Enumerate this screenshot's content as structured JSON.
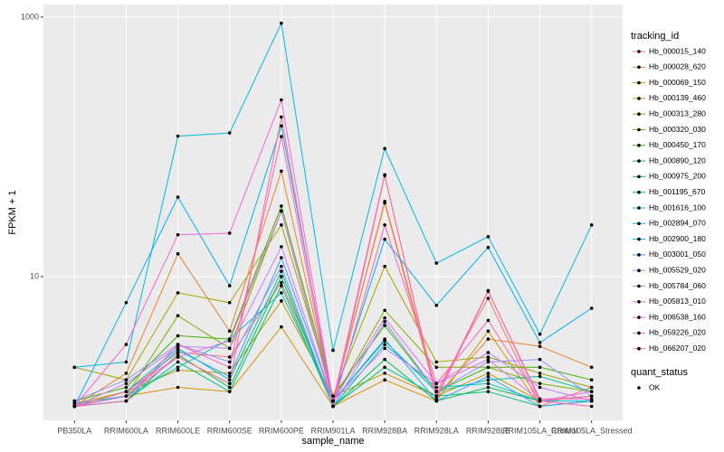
{
  "chart_data": {
    "type": "line",
    "x_label": "sample_name",
    "y_label": "FPKM + 1",
    "log_scale": true,
    "grid": true,
    "ylim": [
      0.78,
      1250
    ],
    "yticks": [
      10,
      1000
    ],
    "legend_title": "tracking_id",
    "point_legend_title": "quant_status",
    "point_legend_entries": [
      "OK"
    ],
    "point_color": "#000000",
    "categories": [
      "PB350LA",
      "RRIM600LA",
      "RRIM600LE",
      "RRIM600SE",
      "RRIM600PE",
      "RRIM901LA",
      "RRIM928BA",
      "RRIM928LA",
      "RRIM928LE",
      "RRIM105LA_Control",
      "RRIM105LA_Stressed"
    ],
    "series": [
      {
        "name": "Hb_000015_140",
        "color": "#F8766D",
        "values": [
          1.0,
          1.3,
          2.6,
          2.4,
          9,
          1.1,
          38,
          1.3,
          6.8,
          1.0,
          1.4
        ]
      },
      {
        "name": "Hb_000028_620",
        "color": "#EA8331",
        "values": [
          1.0,
          1.8,
          15,
          3.8,
          65,
          1.1,
          37,
          1.2,
          3.3,
          2.9,
          2.0
        ]
      },
      {
        "name": "Hb_000069_150",
        "color": "#D89000",
        "values": [
          1.0,
          1.2,
          1.4,
          1.3,
          4.1,
          1.0,
          1.6,
          1.1,
          3.8,
          1.0,
          1.1
        ]
      },
      {
        "name": "Hb_000139_460",
        "color": "#C09B00",
        "values": [
          1.05,
          1.3,
          1.9,
          1.8,
          6.5,
          1.2,
          1.8,
          1.2,
          1.8,
          1.1,
          1.2
        ]
      },
      {
        "name": "Hb_000313_280",
        "color": "#A3A500",
        "values": [
          2.0,
          1.6,
          7.5,
          6.3,
          25,
          1.2,
          12,
          2.2,
          2.4,
          1.8,
          1.4
        ]
      },
      {
        "name": "Hb_000320_030",
        "color": "#7CAE00",
        "values": [
          1.0,
          1.2,
          5.0,
          2.8,
          32,
          1.1,
          5.5,
          2.0,
          2.0,
          1.5,
          1.3
        ]
      },
      {
        "name": "Hb_000450_170",
        "color": "#39B600",
        "values": [
          1.1,
          1.4,
          3.5,
          3.3,
          35,
          1.2,
          4.2,
          1.3,
          2.0,
          2.0,
          1.6
        ]
      },
      {
        "name": "Hb_000890_120",
        "color": "#00BB4E",
        "values": [
          1.0,
          1.1,
          2.5,
          1.4,
          10,
          1.0,
          2.3,
          1.1,
          1.4,
          1.1,
          1.2
        ]
      },
      {
        "name": "Hb_000975_200",
        "color": "#00BF7D",
        "values": [
          1.0,
          1.1,
          2.2,
          1.3,
          8.5,
          1.0,
          2.0,
          1.2,
          1.3,
          1.0,
          1.1
        ]
      },
      {
        "name": "Hb_001195_670",
        "color": "#00C1A3",
        "values": [
          1.05,
          1.2,
          2.0,
          3.3,
          7.5,
          1.1,
          3.2,
          1.3,
          1.6,
          1.7,
          1.3
        ]
      },
      {
        "name": "Hb_001616_100",
        "color": "#00BFC4",
        "values": [
          1.0,
          1.3,
          2.8,
          1.6,
          11,
          1.0,
          3.0,
          1.4,
          1.5,
          1.1,
          1.1
        ]
      },
      {
        "name": "Hb_002894_070",
        "color": "#00BAE0",
        "values": [
          2.0,
          2.2,
          121,
          128,
          897,
          2.7,
          97,
          12.7,
          20.3,
          3.6,
          25
        ]
      },
      {
        "name": "Hb_002900_180",
        "color": "#00B0F6",
        "values": [
          1.0,
          6.3,
          41,
          8.5,
          145,
          1.1,
          19.4,
          6.0,
          16.8,
          3.1,
          5.7
        ]
      },
      {
        "name": "Hb_003001_050",
        "color": "#35A2FF",
        "values": [
          1.0,
          1.2,
          2.7,
          1.7,
          14,
          1.1,
          3.3,
          1.1,
          1.7,
          1.0,
          1.1
        ]
      },
      {
        "name": "Hb_005529_020",
        "color": "#9590FF",
        "values": [
          1.1,
          1.6,
          3.0,
          2.2,
          12,
          1.0,
          4.5,
          1.3,
          2.2,
          2.3,
          1.2
        ]
      },
      {
        "name": "Hb_005784_060",
        "color": "#C77CFF",
        "values": [
          1.0,
          1.5,
          2.9,
          2.8,
          17,
          1.1,
          2.8,
          1.5,
          2.6,
          1.4,
          1.1
        ]
      },
      {
        "name": "Hb_005813_010",
        "color": "#E76BF3",
        "values": [
          1.0,
          1.2,
          2.4,
          3.2,
          32,
          1.1,
          4.8,
          1.5,
          2.3,
          1.1,
          1.3
        ]
      },
      {
        "name": "Hb_006538_160",
        "color": "#FA62DB",
        "values": [
          1.0,
          3.0,
          21,
          21.6,
          230,
          1.1,
          61,
          1.14,
          7.7,
          1.14,
          1.14
        ]
      },
      {
        "name": "Hb_059226_020",
        "color": "#FF62BC",
        "values": [
          1.0,
          1.1,
          3.0,
          2.0,
          120,
          1.0,
          25,
          1.5,
          4.6,
          1.1,
          1.0
        ]
      },
      {
        "name": "Hb_066207_020",
        "color": "#FF6C91",
        "values": [
          1.0,
          1.3,
          2.4,
          1.5,
          170,
          1.0,
          60,
          1.2,
          7.8,
          1.1,
          1.2
        ]
      }
    ]
  }
}
